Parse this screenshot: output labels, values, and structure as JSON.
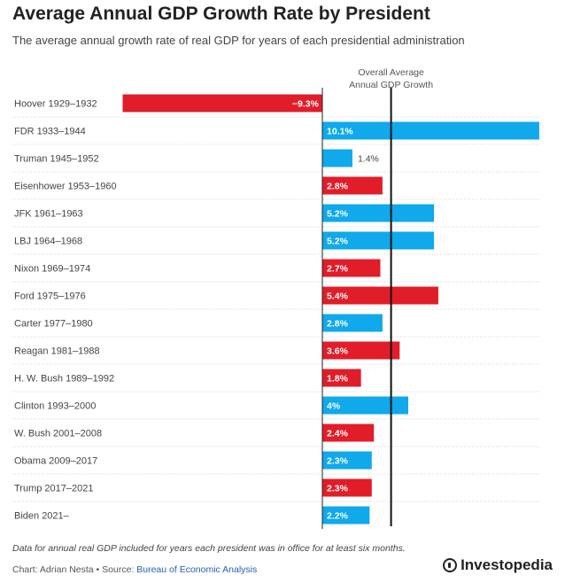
{
  "header": {
    "title": "Average Annual GDP Growth Rate by President",
    "subtitle": "The average annual growth rate of real GDP for years of each presidential administration"
  },
  "chart_data": {
    "type": "bar",
    "orientation": "horizontal",
    "title": "Average Annual GDP Growth Rate by President",
    "subtitle": "The average annual growth rate of real GDP for years of each presidential administration",
    "xlim": [
      -9.3,
      10.1
    ],
    "grid": false,
    "reference_line": {
      "label_line1": "Overall Average",
      "label_line2": "Annual GDP Growth",
      "value": 3.2
    },
    "colors": {
      "red": "#e11d2a",
      "blue": "#10a9eb"
    },
    "categories": [
      "Hoover 1929–1932",
      "FDR 1933–1944",
      "Truman 1945–1952",
      "Eisenhower 1953–1960",
      "JFK 1961–1963",
      "LBJ 1964–1968",
      "Nixon 1969–1974",
      "Ford 1975–1976",
      "Carter 1977–1980",
      "Reagan 1981–1988",
      "H. W. Bush 1989–1992",
      "Clinton 1993–2000",
      "W. Bush 2001–2008",
      "Obama 2009–2017",
      "Trump 2017–2021",
      "Biden 2021–"
    ],
    "values": [
      -9.3,
      10.1,
      1.4,
      2.8,
      5.2,
      5.2,
      2.7,
      5.4,
      2.8,
      3.6,
      1.8,
      4.0,
      2.4,
      2.3,
      2.3,
      2.2
    ],
    "labels": [
      "−9.3%",
      "10.1%",
      "1.4%",
      "2.8%",
      "5.2%",
      "5.2%",
      "2.7%",
      "5.4%",
      "2.8%",
      "3.6%",
      "1.8%",
      "4%",
      "2.4%",
      "2.3%",
      "2.3%",
      "2.2%"
    ],
    "bar_colors": [
      "red",
      "blue",
      "blue",
      "red",
      "blue",
      "blue",
      "red",
      "red",
      "blue",
      "red",
      "red",
      "blue",
      "red",
      "blue",
      "red",
      "blue"
    ]
  },
  "footer": {
    "note": "Data for annual real GDP included for years each president was in office for at least six months.",
    "source_prefix": "Chart: Adrian Nesta • Source: ",
    "source_link": "Bureau of Economic Analysis",
    "brand": "Investopedia"
  }
}
